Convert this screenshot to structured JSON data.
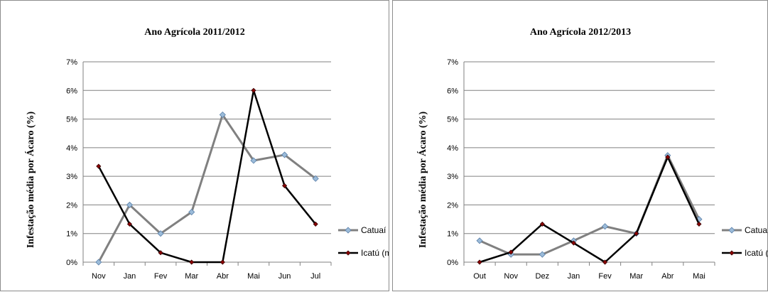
{
  "colors": {
    "catuai": "#808080",
    "icatu": "#000000",
    "catuai_marker": "#9bbbd9",
    "icatu_marker": "#8b0000",
    "grid": "#808080"
  },
  "chart_data": [
    {
      "type": "line",
      "title": "Ano Agrícola 2011/2012",
      "ylabel": "Infestação média  por  Ácaro (%)",
      "xlabel": "",
      "categories": [
        "Nov",
        "Jan",
        "Fev",
        "Mar",
        "Abr",
        "Mai",
        "Jun",
        "Jul"
      ],
      "ylim": [
        0,
        7
      ],
      "yticks": [
        "0%",
        "1%",
        "2%",
        "3%",
        "4%",
        "5%",
        "6%",
        "7%"
      ],
      "grid": true,
      "legend": "right",
      "series": [
        {
          "name": "Catuaí (média)",
          "values": [
            0,
            2.0,
            1.0,
            1.75,
            5.15,
            3.55,
            3.75,
            2.92
          ]
        },
        {
          "name": "Icatú (média)",
          "values": [
            3.35,
            1.33,
            0.33,
            0,
            0,
            6.0,
            2.67,
            1.33
          ]
        }
      ]
    },
    {
      "type": "line",
      "title": "Ano Agrícola 2012/2013",
      "ylabel": "Infestação média  por  Ácaro (%)",
      "xlabel": "",
      "categories": [
        "Out",
        "Nov",
        "Dez",
        "Jan",
        "Fev",
        "Mar",
        "Abr",
        "Mai"
      ],
      "ylim": [
        0,
        7
      ],
      "yticks": [
        "0%",
        "1%",
        "2%",
        "3%",
        "4%",
        "5%",
        "6%",
        "7%"
      ],
      "grid": true,
      "legend": "right",
      "series": [
        {
          "name": "Catuaí (média)",
          "values": [
            0.75,
            0.27,
            0.27,
            0.75,
            1.25,
            1.0,
            3.73,
            1.5
          ]
        },
        {
          "name": "Icatú (média)",
          "values": [
            0,
            0.35,
            1.33,
            0.67,
            0,
            1.0,
            3.67,
            1.33
          ]
        }
      ]
    }
  ]
}
